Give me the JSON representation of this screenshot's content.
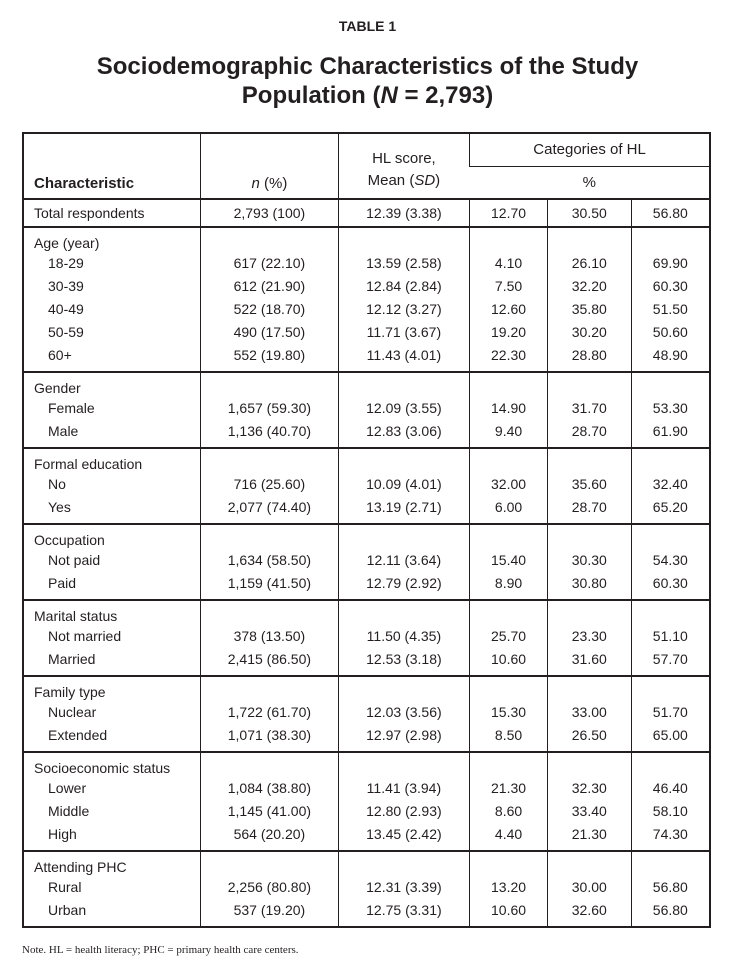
{
  "header": {
    "label": "TABLE 1",
    "title": [
      "Sociodemographic Characteristics of the Study Population (",
      "N",
      " = 2,793)"
    ]
  },
  "table": {
    "columns": {
      "characteristic": "Characteristic",
      "n": [
        "n",
        " (%)"
      ],
      "hl": [
        "HL score,",
        "Mean (",
        "SD",
        ")"
      ],
      "categories": "Categories of HL",
      "percent": "%"
    },
    "sections": [
      {
        "label": "Total respondents",
        "cells": [
          "2,793 (100)",
          "12.39 (3.38)",
          "12.70",
          "30.50",
          "56.80"
        ]
      },
      {
        "label": "Age (year)",
        "rows": [
          {
            "label": "18-29",
            "cells": [
              "617 (22.10)",
              "13.59 (2.58)",
              "4.10",
              "26.10",
              "69.90"
            ]
          },
          {
            "label": "30-39",
            "cells": [
              "612 (21.90)",
              "12.84 (2.84)",
              "7.50",
              "32.20",
              "60.30"
            ]
          },
          {
            "label": "40-49",
            "cells": [
              "522 (18.70)",
              "12.12 (3.27)",
              "12.60",
              "35.80",
              "51.50"
            ]
          },
          {
            "label": "50-59",
            "cells": [
              "490 (17.50)",
              "11.71 (3.67)",
              "19.20",
              "30.20",
              "50.60"
            ]
          },
          {
            "label": "60+",
            "cells": [
              "552 (19.80)",
              "11.43 (4.01)",
              "22.30",
              "28.80",
              "48.90"
            ]
          }
        ]
      },
      {
        "label": "Gender",
        "rows": [
          {
            "label": "Female",
            "cells": [
              "1,657 (59.30)",
              "12.09 (3.55)",
              "14.90",
              "31.70",
              "53.30"
            ]
          },
          {
            "label": "Male",
            "cells": [
              "1,136 (40.70)",
              "12.83 (3.06)",
              "9.40",
              "28.70",
              "61.90"
            ]
          }
        ]
      },
      {
        "label": "Formal education",
        "rows": [
          {
            "label": "No",
            "cells": [
              "716 (25.60)",
              "10.09 (4.01)",
              "32.00",
              "35.60",
              "32.40"
            ]
          },
          {
            "label": "Yes",
            "cells": [
              "2,077 (74.40)",
              "13.19 (2.71)",
              "6.00",
              "28.70",
              "65.20"
            ]
          }
        ]
      },
      {
        "label": "Occupation",
        "rows": [
          {
            "label": "Not paid",
            "cells": [
              "1,634 (58.50)",
              "12.11 (3.64)",
              "15.40",
              "30.30",
              "54.30"
            ]
          },
          {
            "label": "Paid",
            "cells": [
              "1,159 (41.50)",
              "12.79 (2.92)",
              "8.90",
              "30.80",
              "60.30"
            ]
          }
        ]
      },
      {
        "label": "Marital status",
        "rows": [
          {
            "label": "Not married",
            "cells": [
              "378 (13.50)",
              "11.50 (4.35)",
              "25.70",
              "23.30",
              "51.10"
            ]
          },
          {
            "label": "Married",
            "cells": [
              "2,415 (86.50)",
              "12.53 (3.18)",
              "10.60",
              "31.60",
              "57.70"
            ]
          }
        ]
      },
      {
        "label": "Family type",
        "rows": [
          {
            "label": "Nuclear",
            "cells": [
              "1,722 (61.70)",
              "12.03 (3.56)",
              "15.30",
              "33.00",
              "51.70"
            ]
          },
          {
            "label": "Extended",
            "cells": [
              "1,071 (38.30)",
              "12.97 (2.98)",
              "8.50",
              "26.50",
              "65.00"
            ]
          }
        ]
      },
      {
        "label": "Socioeconomic status",
        "rows": [
          {
            "label": "Lower",
            "cells": [
              "1,084 (38.80)",
              "11.41 (3.94)",
              "21.30",
              "32.30",
              "46.40"
            ]
          },
          {
            "label": "Middle",
            "cells": [
              "1,145 (41.00)",
              "12.80 (2.93)",
              "8.60",
              "33.40",
              "58.10"
            ]
          },
          {
            "label": "High",
            "cells": [
              "564 (20.20)",
              "13.45 (2.42)",
              "4.40",
              "21.30",
              "74.30"
            ]
          }
        ]
      },
      {
        "label": "Attending PHC",
        "rows": [
          {
            "label": "Rural",
            "cells": [
              "2,256 (80.80)",
              "12.31 (3.39)",
              "13.20",
              "30.00",
              "56.80"
            ]
          },
          {
            "label": "Urban",
            "cells": [
              "537 (19.20)",
              "12.75 (3.31)",
              "10.60",
              "32.60",
              "56.80"
            ]
          }
        ]
      }
    ]
  },
  "note": "Note. HL = health literacy; PHC = primary health care centers."
}
